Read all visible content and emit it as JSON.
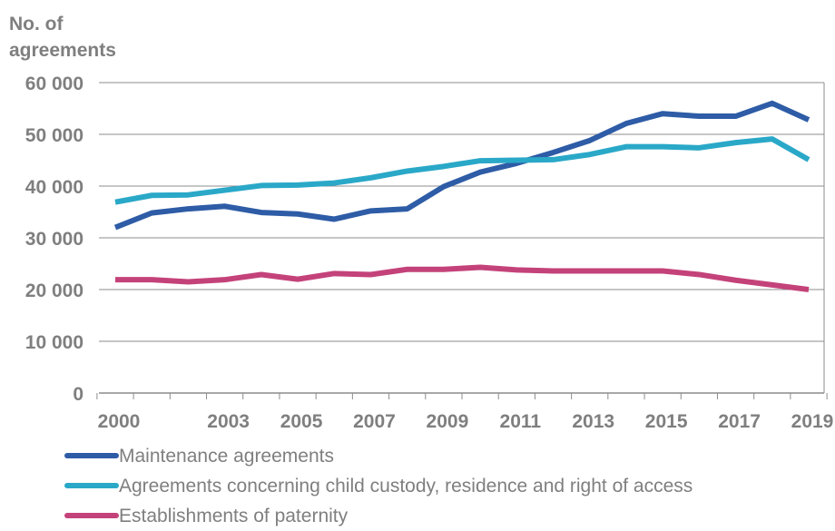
{
  "chart_data": {
    "type": "line",
    "ylabel_lines": [
      "No. of",
      "agreements"
    ],
    "y_ticks": [
      0,
      10000,
      20000,
      30000,
      40000,
      50000,
      60000
    ],
    "y_tick_labels": [
      "0",
      "10 000",
      "20 000",
      "30 000",
      "40 000",
      "50 000",
      "60 000"
    ],
    "ylim": [
      0,
      60000
    ],
    "x_ticks": [
      2000,
      2003,
      2005,
      2007,
      2009,
      2011,
      2013,
      2015,
      2017,
      2019
    ],
    "x_tick_labels": [
      "2000",
      "2003",
      "2005",
      "2007",
      "2009",
      "2011",
      "2013",
      "2015",
      "2017",
      "2019"
    ],
    "grid": true,
    "legend_position": "bottom",
    "series": [
      {
        "name": "Maintenance agreements",
        "color": "#2e5ca6",
        "x": [
          2000,
          2001,
          2002,
          2003,
          2004,
          2005,
          2006,
          2007,
          2008,
          2009,
          2010,
          2011,
          2012,
          2013,
          2014,
          2015,
          2016,
          2017,
          2018,
          2019
        ],
        "values": [
          32000,
          34800,
          35600,
          36100,
          34900,
          34600,
          33600,
          35200,
          35600,
          39900,
          42700,
          44400,
          46500,
          48800,
          52100,
          54000,
          53500,
          53500,
          56000,
          52800
        ]
      },
      {
        "name": "Agreements concerning child custody, residence and right of access",
        "color": "#2aa8c8",
        "x": [
          2000,
          2001,
          2002,
          2003,
          2004,
          2005,
          2006,
          2007,
          2008,
          2009,
          2010,
          2011,
          2012,
          2013,
          2014,
          2015,
          2016,
          2017,
          2018,
          2019
        ],
        "values": [
          36900,
          38200,
          38300,
          39200,
          40100,
          40200,
          40600,
          41600,
          42900,
          43800,
          44900,
          45000,
          45100,
          46100,
          47600,
          47600,
          47400,
          48400,
          49100,
          45100
        ]
      },
      {
        "name": "Establishments of paternity",
        "color": "#c4427a",
        "x": [
          2000,
          2001,
          2002,
          2003,
          2004,
          2005,
          2006,
          2007,
          2008,
          2009,
          2010,
          2011,
          2012,
          2013,
          2014,
          2015,
          2016,
          2017,
          2018,
          2019
        ],
        "values": [
          21900,
          21900,
          21500,
          21900,
          22900,
          22000,
          23100,
          22900,
          23900,
          23900,
          24300,
          23800,
          23600,
          23600,
          23600,
          23600,
          22900,
          21800,
          20900,
          20000
        ]
      }
    ]
  }
}
